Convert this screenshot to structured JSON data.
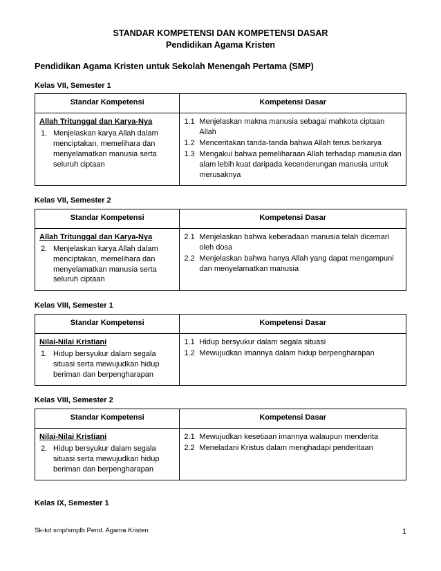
{
  "title1": "STANDAR KOMPETENSI DAN KOMPETENSI DASAR",
  "title2": "Pendidikan Agama Kristen",
  "subtitle": "Pendidikan Agama Kristen untuk Sekolah Menengah Pertama (SMP)",
  "headers": {
    "sk": "Standar Kompetensi",
    "kd": "Kompetensi Dasar"
  },
  "sections": [
    {
      "label": "Kelas  VII,  Semester 1",
      "sk_title": "Allah Tritunggal dan Karya-Nya",
      "sk_items": [
        {
          "n": "1.",
          "t": "Menjelaskan karya Allah dalam menciptakan, memelihara dan menyelamatkan manusia serta seluruh ciptaan"
        }
      ],
      "kd_items": [
        {
          "n": "1.1",
          "t": "Menjelaskan makna manusia sebagai mahkota ciptaan Allah"
        },
        {
          "n": "1.2",
          "t": "Menceritakan tanda-tanda bahwa Allah terus berkarya"
        },
        {
          "n": "1.3",
          "t": "Mengakui bahwa pemeliharaan Allah terhadap manusia dan alam lebih kuat daripada kecenderungan manusia untuk merusaknya"
        }
      ]
    },
    {
      "label": "Kelas  VII,  Semester   2",
      "sk_title": "Allah Tritunggal dan Karya-Nya",
      "sk_items": [
        {
          "n": "2.",
          "t": "Menjelaskan karya Allah dalam menciptakan, memelihara dan menyelamatkan manusia serta seluruh ciptaan"
        }
      ],
      "kd_items": [
        {
          "n": "2.1",
          "t": "Menjelaskan bahwa keberadaan manusia telah dicemari oleh dosa"
        },
        {
          "n": "2.2",
          "t": "Menjelaskan bahwa hanya Allah yang dapat mengampuni dan menyelamatkan manusia"
        }
      ]
    },
    {
      "label": "Kelas  VIII, Semester 1",
      "sk_title": "Nilai-Nilai Kristiani",
      "sk_items": [
        {
          "n": "1.",
          "t": "Hidup bersyukur dalam segala situasi serta mewujudkan hidup beriman dan berpengharapan"
        }
      ],
      "kd_items": [
        {
          "n": "1.1",
          "t": "Hidup bersyukur dalam segala situasi"
        },
        {
          "n": "1.2",
          "t": "Mewujudkan imannya dalam hidup berpengharapan"
        }
      ]
    },
    {
      "label": "Kelas  VIII, Semester 2",
      "sk_title": "Nilai-Nilai Kristiani",
      "sk_items": [
        {
          "n": "2.",
          "t": "Hidup bersyukur dalam segala situasi serta mewujudkan hidup beriman dan berpengharapan"
        }
      ],
      "kd_items": [
        {
          "n": "2.1",
          "t": "Mewujudkan  kesetiaan imannya walaupun menderita"
        },
        {
          "n": "2.2",
          "t": "Meneladani Kristus dalam menghadapi penderitaan"
        }
      ]
    }
  ],
  "last_label": "Kelas  IX, Semester  1",
  "footer_left": "Sk-kd smp/smplb Pend. Agama Kristen",
  "footer_page": "1"
}
